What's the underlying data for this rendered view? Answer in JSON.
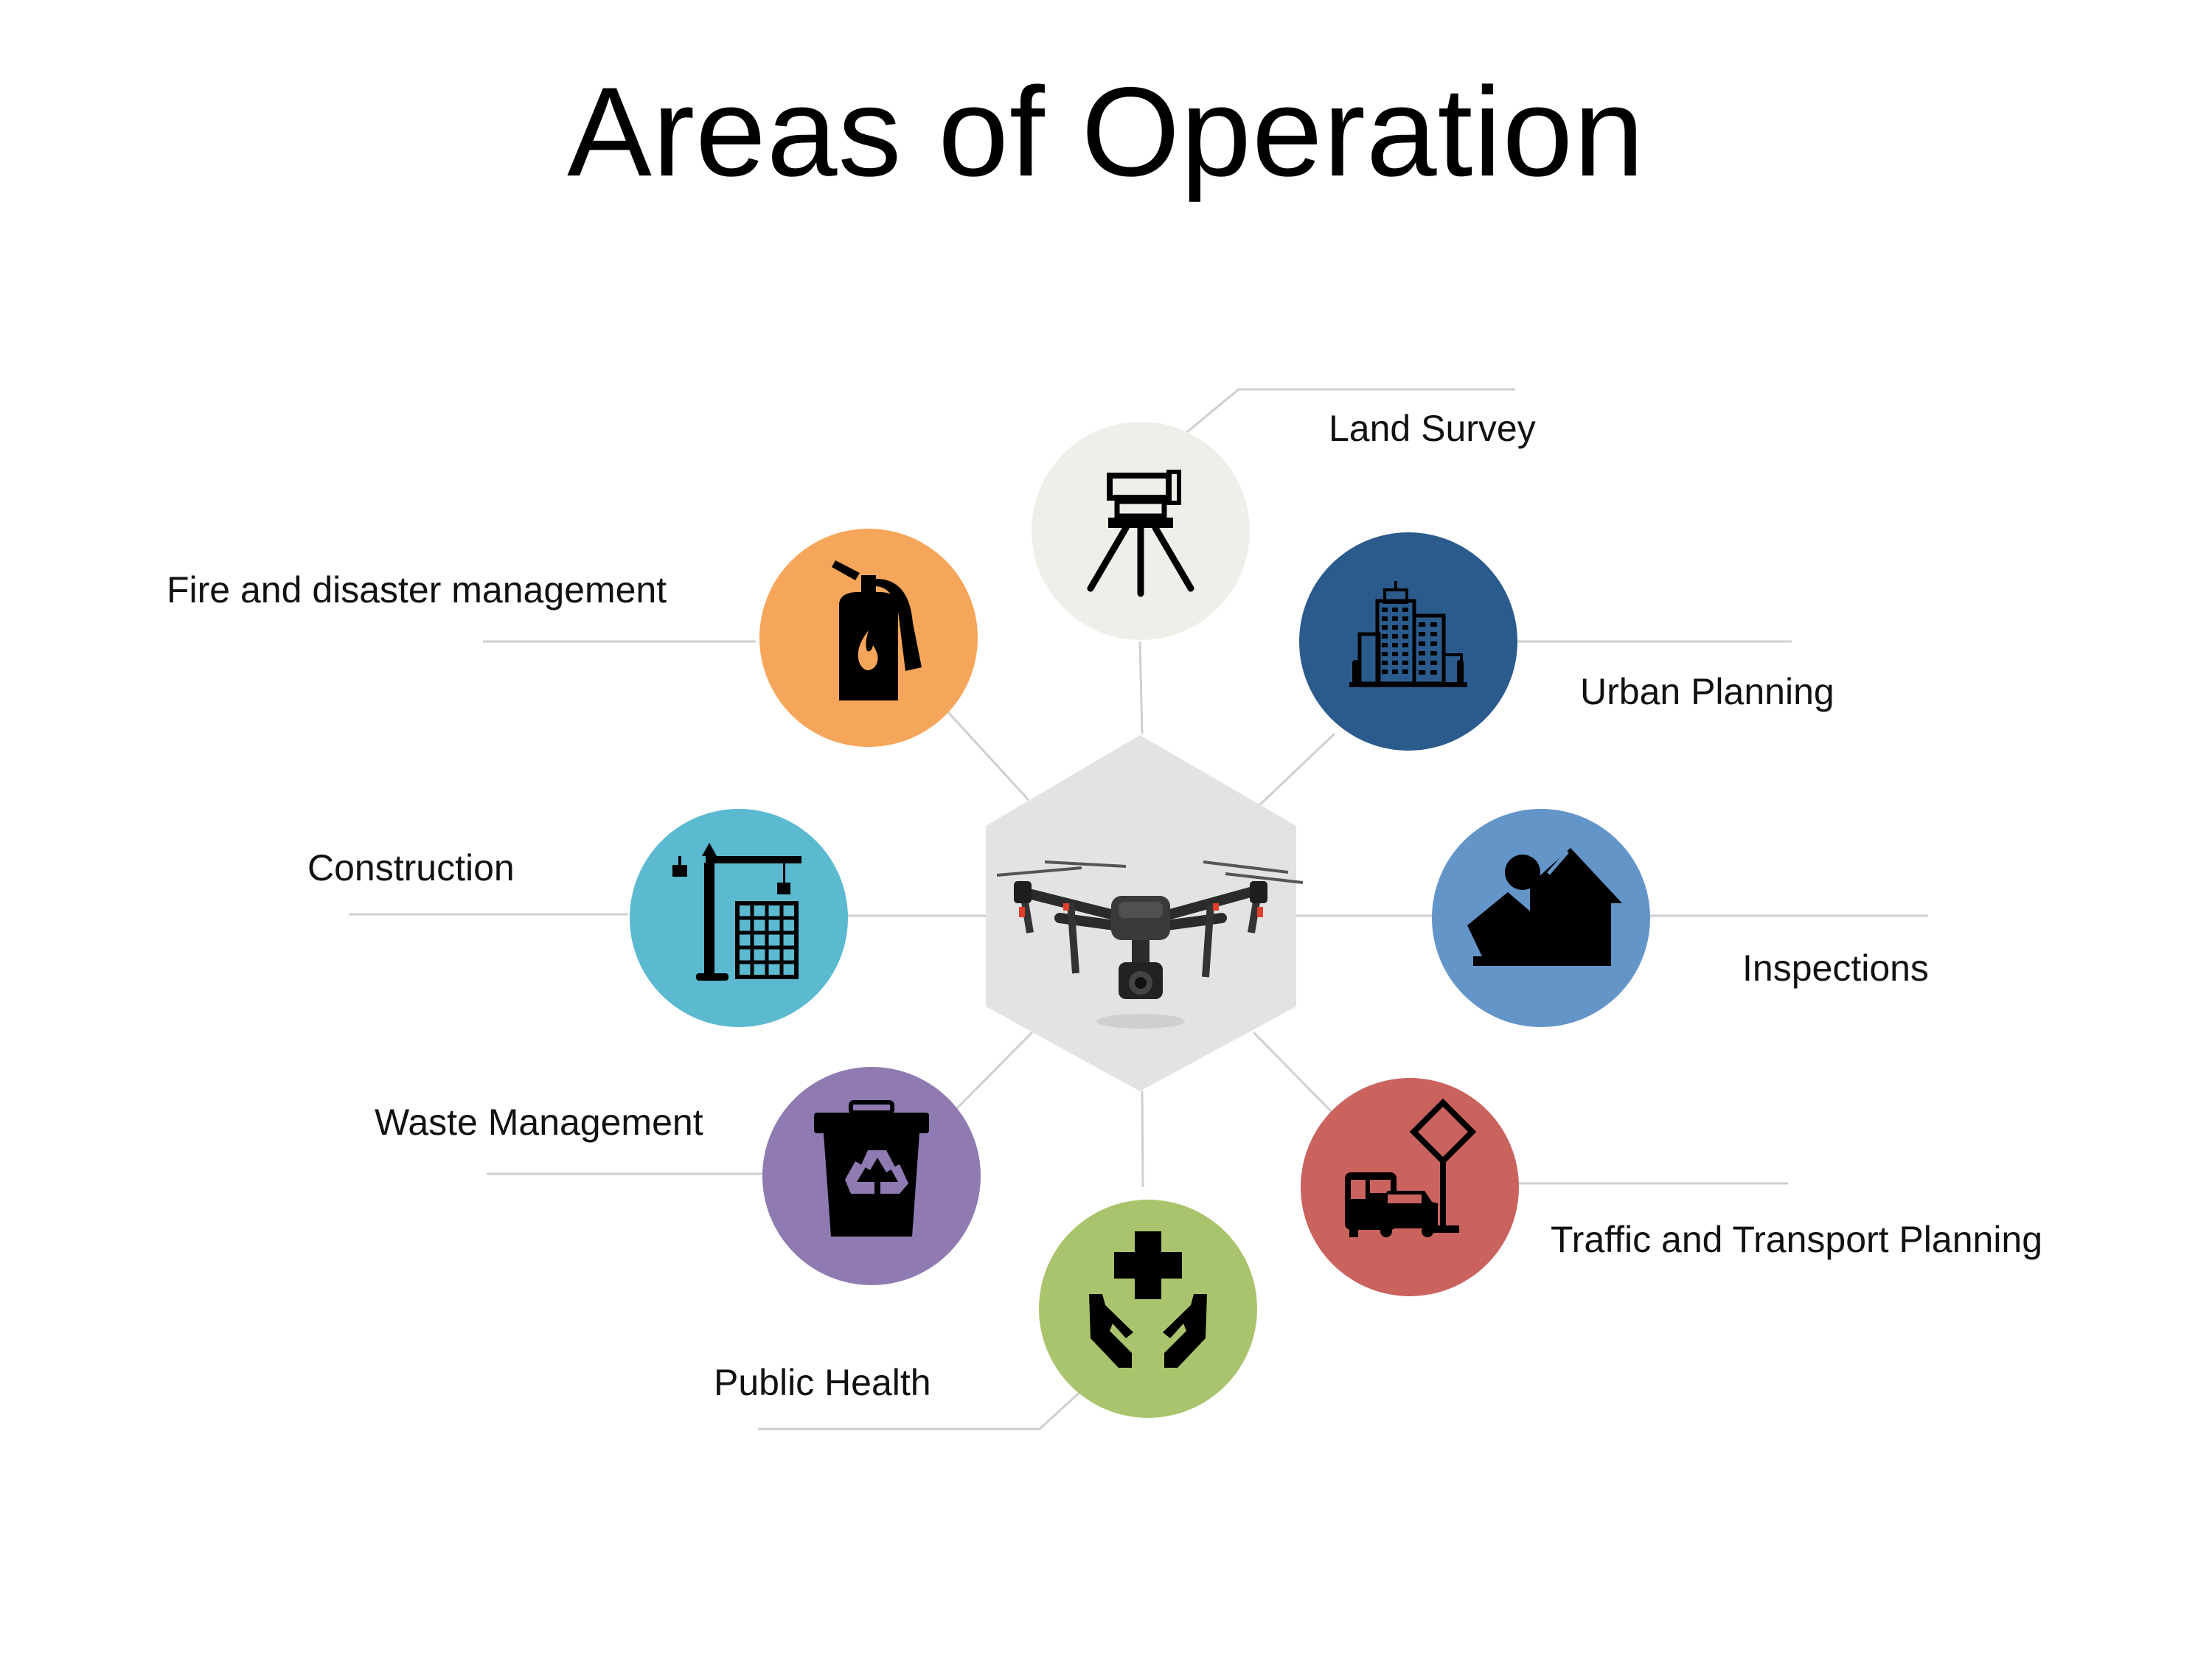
{
  "title": "Areas of Operation",
  "center": {
    "icon": "drone-icon",
    "fill": "#e3e3e3"
  },
  "areas": [
    {
      "key": "land-survey",
      "label": "Land Survey",
      "color": "#f0eee8",
      "icon": "tripod-icon"
    },
    {
      "key": "urban-planning",
      "label": "Urban Planning",
      "color": "#2b5b8d",
      "icon": "city-buildings-icon"
    },
    {
      "key": "inspections",
      "label": "Inspections",
      "color": "#6395c9",
      "icon": "house-inspector-icon"
    },
    {
      "key": "traffic",
      "label": "Traffic and Transport Planning",
      "color": "#ca625e",
      "icon": "bus-car-sign-icon"
    },
    {
      "key": "public-health",
      "label": "Public Health",
      "color": "#a9c46c",
      "icon": "hands-cross-icon"
    },
    {
      "key": "waste",
      "label": "Waste Management",
      "color": "#8f7ab2",
      "icon": "recycle-bin-icon"
    },
    {
      "key": "construction",
      "label": "Construction",
      "color": "#5bb9d0",
      "icon": "crane-icon"
    },
    {
      "key": "fire",
      "label": "Fire and disaster management",
      "color": "#f6a65a",
      "icon": "fire-extinguisher-icon"
    }
  ]
}
